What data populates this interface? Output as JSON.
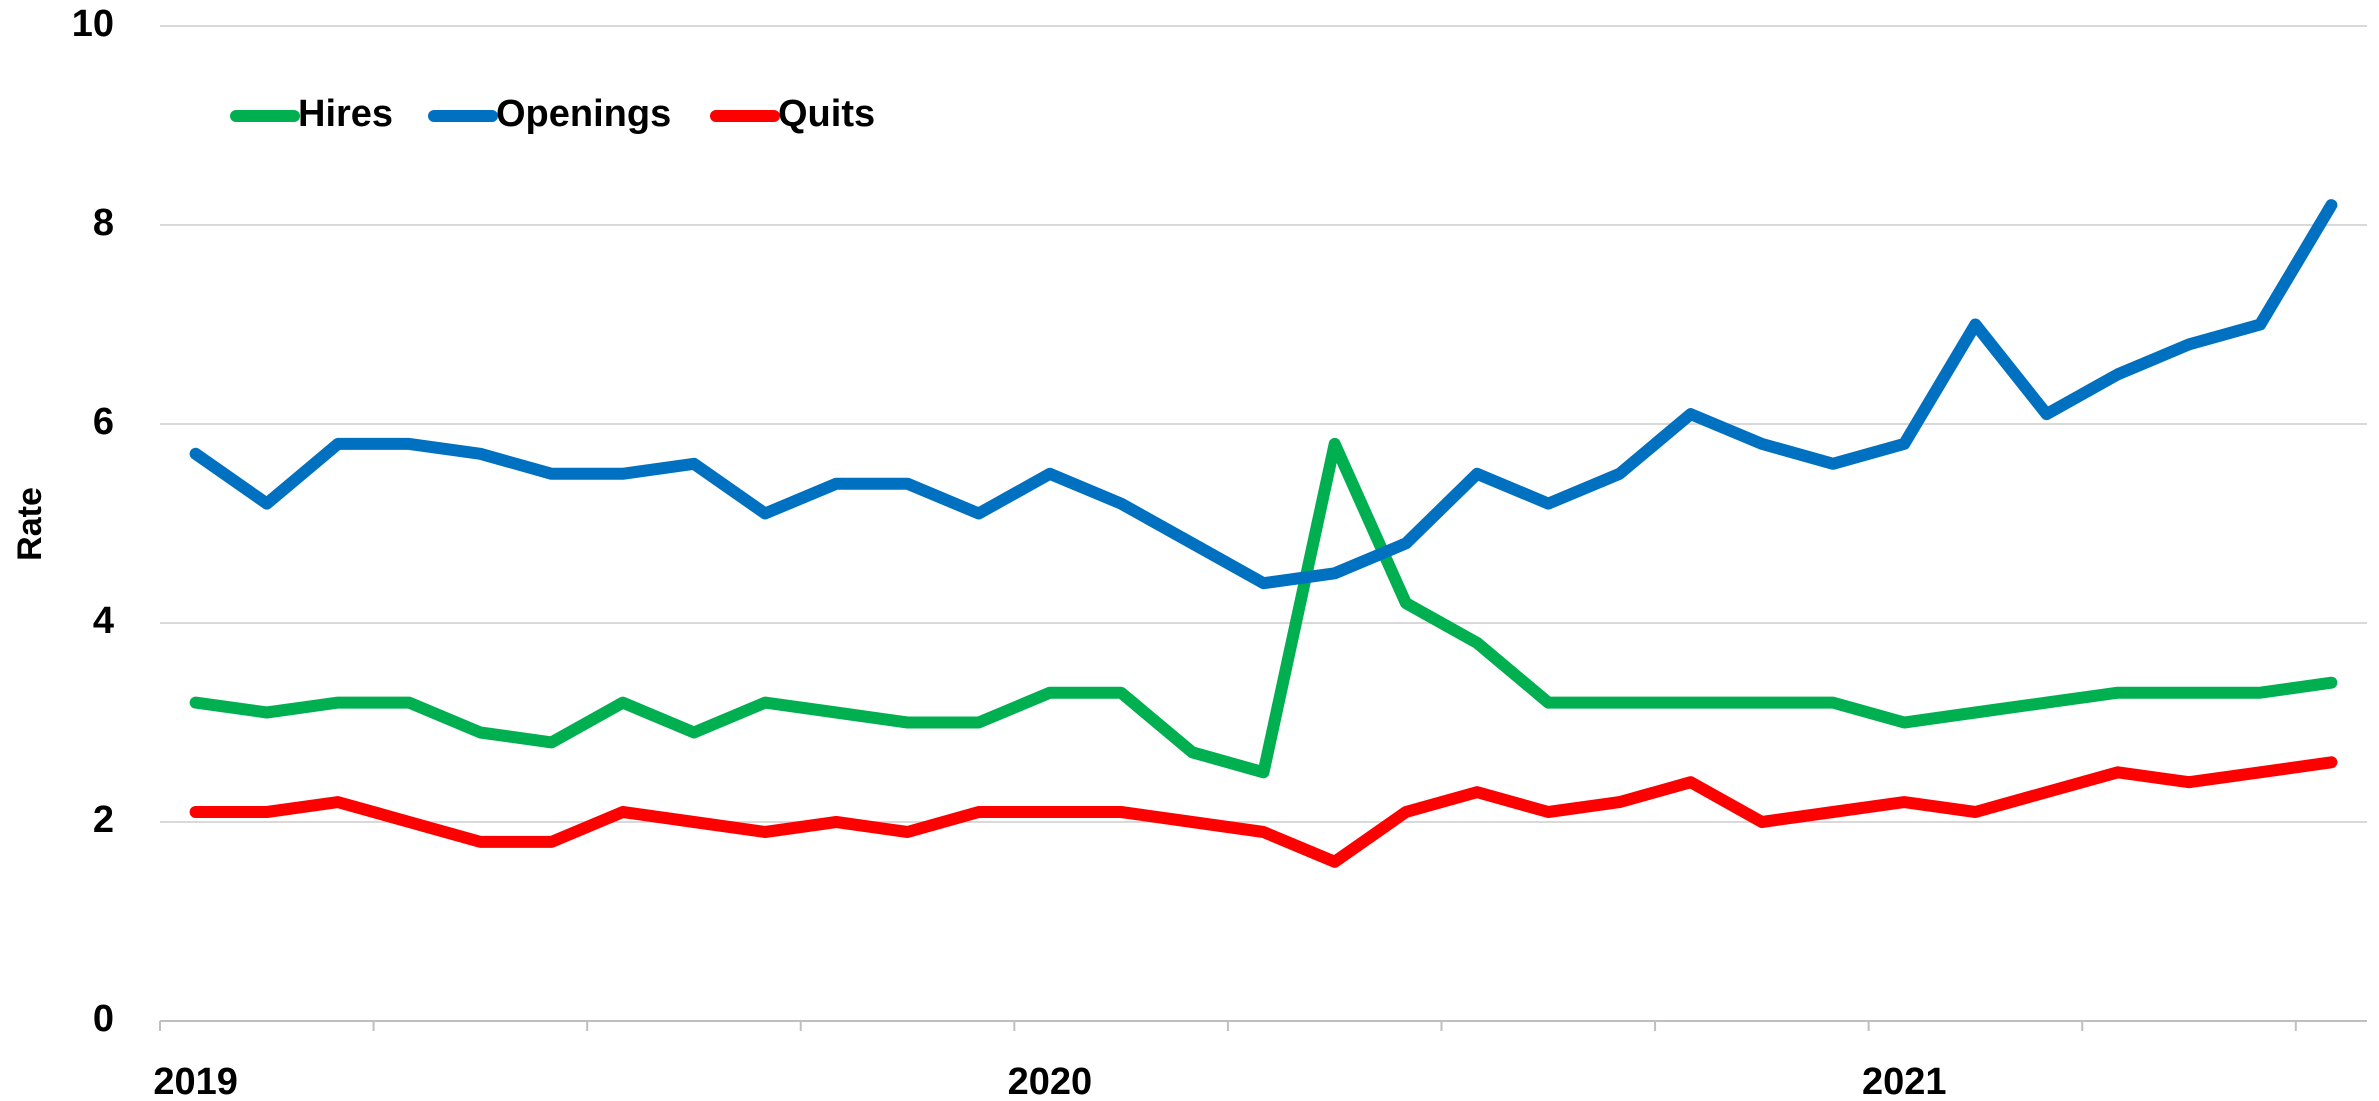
{
  "chart_data": {
    "type": "line",
    "y_label": "Rate",
    "categories": [
      "2019",
      null,
      null,
      null,
      null,
      null,
      null,
      null,
      null,
      null,
      null,
      null,
      "2020",
      null,
      null,
      null,
      null,
      null,
      null,
      null,
      null,
      null,
      null,
      null,
      "2021",
      null,
      null,
      null,
      null,
      null,
      null
    ],
    "series": [
      {
        "name": "Hires",
        "color": "#00b050",
        "values": [
          3.2,
          3.1,
          3.2,
          3.2,
          2.9,
          2.8,
          3.2,
          2.9,
          3.2,
          3.1,
          3.0,
          3.0,
          3.3,
          3.3,
          2.7,
          2.5,
          5.8,
          4.2,
          3.8,
          3.2,
          3.2,
          3.2,
          3.2,
          3.2,
          3.0,
          3.1,
          3.2,
          3.3,
          3.3,
          3.3,
          3.4
        ]
      },
      {
        "name": "Openings",
        "color": "#0070c0",
        "values": [
          5.7,
          5.2,
          5.8,
          5.8,
          5.7,
          5.5,
          5.5,
          5.6,
          5.1,
          5.4,
          5.4,
          5.1,
          5.5,
          5.2,
          4.8,
          4.4,
          4.5,
          4.8,
          5.5,
          5.2,
          5.5,
          6.1,
          5.8,
          5.6,
          5.8,
          7.0,
          6.1,
          6.5,
          6.8,
          7.0,
          8.2
        ]
      },
      {
        "name": "Quits",
        "color": "#ff0000",
        "values": [
          2.1,
          2.1,
          2.2,
          2.0,
          1.8,
          1.8,
          2.1,
          2.0,
          1.9,
          2.0,
          1.9,
          2.1,
          2.1,
          2.1,
          2.0,
          1.9,
          1.6,
          2.1,
          2.3,
          2.1,
          2.2,
          2.4,
          2.0,
          2.1,
          2.2,
          2.1,
          2.3,
          2.5,
          2.4,
          2.5,
          2.6
        ]
      }
    ],
    "ylim": [
      0,
      10
    ],
    "yticks": [
      0,
      2,
      4,
      6,
      8,
      10
    ],
    "grid": true,
    "legend": "top-left"
  }
}
